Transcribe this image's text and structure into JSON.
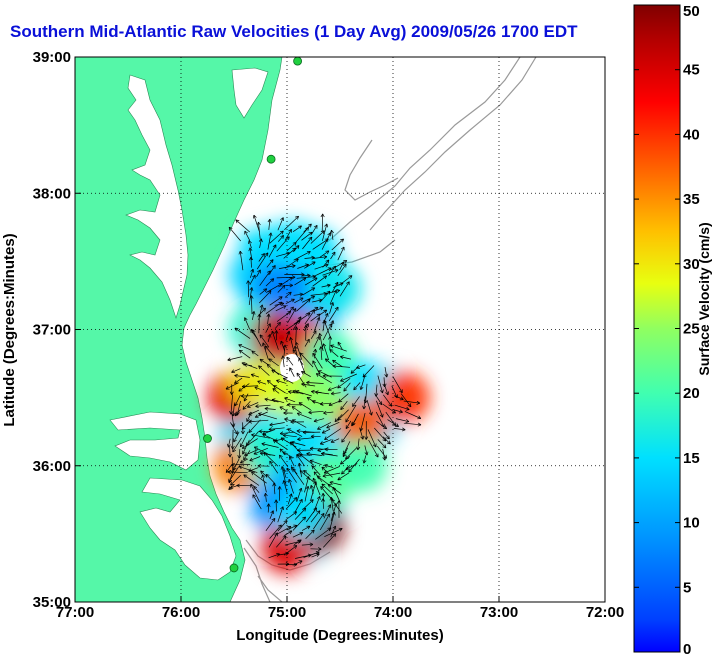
{
  "chart_data": {
    "type": "heatmap",
    "title": "Southern Mid-Atlantic Raw Velocities (1 Day Avg) 2009/05/26 1700 EDT",
    "xlabel": "Longitude (Degrees:Minutes)",
    "ylabel": "Latitude (Degrees:Minutes)",
    "x_ticks": [
      "77:00",
      "76:00",
      "75:00",
      "74:00",
      "73:00",
      "72:00"
    ],
    "y_ticks": [
      "39:00",
      "38:00",
      "37:00",
      "36:00",
      "35:00"
    ],
    "xlim": [
      -77,
      -72
    ],
    "ylim": [
      35,
      39
    ],
    "grid": true,
    "colorbar": {
      "label": "Surface Velocity (cm/s)",
      "ticks": [
        "0",
        "5",
        "10",
        "15",
        "20",
        "25",
        "30",
        "35",
        "40",
        "45",
        "50"
      ],
      "range": [
        0,
        50
      ]
    },
    "colors": {
      "land": "#55f7a8",
      "title_text": "#0a10d8",
      "bathymetry": "#9a9a9a",
      "vectors": "#000000",
      "stations": "#20d040"
    },
    "velocity_field": {
      "grid_cells_deg": 0.1,
      "cells": [
        {
          "lon": -75.3,
          "lat": 37.4,
          "v": 14
        },
        {
          "lon": -75.1,
          "lat": 37.3,
          "v": 8
        },
        {
          "lon": -74.9,
          "lat": 37.25,
          "v": 7
        },
        {
          "lon": -74.7,
          "lat": 37.2,
          "v": 10
        },
        {
          "lon": -74.55,
          "lat": 37.3,
          "v": 16
        },
        {
          "lon": -75.3,
          "lat": 37.0,
          "v": 18
        },
        {
          "lon": -74.85,
          "lat": 36.9,
          "v": 42
        },
        {
          "lon": -75.1,
          "lat": 36.95,
          "v": 46
        },
        {
          "lon": -74.6,
          "lat": 36.8,
          "v": 20
        },
        {
          "lon": -75.5,
          "lat": 36.5,
          "v": 44
        },
        {
          "lon": -75.3,
          "lat": 36.6,
          "v": 30
        },
        {
          "lon": -75.0,
          "lat": 36.55,
          "v": 28
        },
        {
          "lon": -74.7,
          "lat": 36.5,
          "v": 25
        },
        {
          "lon": -74.3,
          "lat": 36.3,
          "v": 38
        },
        {
          "lon": -73.9,
          "lat": 36.5,
          "v": 40
        },
        {
          "lon": -75.45,
          "lat": 36.0,
          "v": 36
        },
        {
          "lon": -75.2,
          "lat": 36.1,
          "v": 18
        },
        {
          "lon": -74.9,
          "lat": 35.9,
          "v": 12
        },
        {
          "lon": -74.6,
          "lat": 35.9,
          "v": 22
        },
        {
          "lon": -74.3,
          "lat": 36.0,
          "v": 20
        },
        {
          "lon": -75.1,
          "lat": 35.7,
          "v": 9
        },
        {
          "lon": -74.7,
          "lat": 35.55,
          "v": 50
        },
        {
          "lon": -75.0,
          "lat": 35.4,
          "v": 44
        },
        {
          "lon": -74.85,
          "lat": 35.65,
          "v": 15
        }
      ]
    },
    "stations": [
      {
        "lon": -74.9,
        "lat": 38.97
      },
      {
        "lon": -75.15,
        "lat": 38.25
      },
      {
        "lon": -75.75,
        "lat": 36.2
      },
      {
        "lon": -75.5,
        "lat": 35.25
      }
    ]
  }
}
